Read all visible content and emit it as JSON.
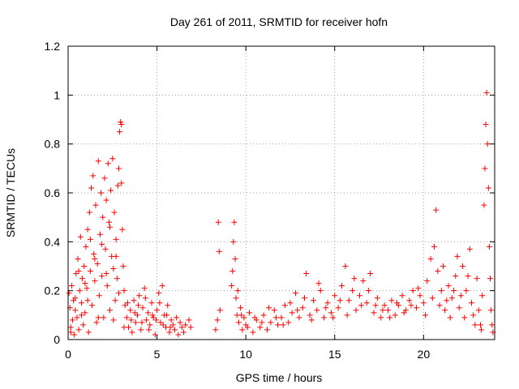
{
  "chart_data": {
    "type": "scatter",
    "title": "Day 261 of 2011, SRMTID for receiver hofn",
    "xlabel": "GPS time / hours",
    "ylabel": "SRMTID / TECUs",
    "xlim": [
      0,
      24
    ],
    "ylim": [
      0,
      1.2
    ],
    "xticks": [
      0,
      5,
      10,
      15,
      20
    ],
    "yticks": [
      0,
      0.2,
      0.4,
      0.6,
      0.8,
      1,
      1.2
    ],
    "grid": true,
    "marker": "+",
    "marker_color": "#ff0000",
    "series": [
      {
        "points": [
          [
            0.05,
            0.19
          ],
          [
            0.1,
            0.13
          ],
          [
            0.15,
            0.05
          ],
          [
            0.2,
            0.22
          ],
          [
            0.25,
            0.08
          ],
          [
            0.3,
            0.16
          ],
          [
            0.35,
            0.02
          ],
          [
            0.4,
            0.12
          ],
          [
            0.45,
            0.27
          ],
          [
            0.5,
            0.09
          ],
          [
            0.55,
            0.33
          ],
          [
            0.6,
            0.04
          ],
          [
            0.65,
            0.2
          ],
          [
            0.7,
            0.42
          ],
          [
            0.75,
            0.15
          ],
          [
            0.8,
            0.25
          ],
          [
            0.85,
            0.06
          ],
          [
            0.9,
            0.3
          ],
          [
            0.95,
            0.11
          ],
          [
            1.0,
            0.38
          ],
          [
            1.05,
            0.21
          ],
          [
            1.1,
            0.45
          ],
          [
            1.15,
            0.03
          ],
          [
            1.2,
            0.52
          ],
          [
            1.25,
            0.28
          ],
          [
            1.3,
            0.62
          ],
          [
            1.35,
            0.14
          ],
          [
            1.4,
            0.67
          ],
          [
            1.45,
            0.35
          ],
          [
            1.5,
            0.24
          ],
          [
            1.55,
            0.55
          ],
          [
            1.6,
            0.07
          ],
          [
            1.65,
            0.31
          ],
          [
            1.7,
            0.73
          ],
          [
            1.75,
            0.18
          ],
          [
            1.8,
            0.43
          ],
          [
            1.85,
            0.6
          ],
          [
            1.9,
            0.26
          ],
          [
            1.95,
            0.5
          ],
          [
            2.0,
            0.09
          ],
          [
            2.05,
            0.66
          ],
          [
            2.1,
            0.37
          ],
          [
            2.15,
            0.57
          ],
          [
            2.2,
            0.22
          ],
          [
            2.25,
            0.72
          ],
          [
            2.3,
            0.48
          ],
          [
            2.35,
            0.12
          ],
          [
            2.4,
            0.61
          ],
          [
            2.45,
            0.34
          ],
          [
            2.5,
            0.74
          ],
          [
            2.55,
            0.29
          ],
          [
            2.6,
            0.52
          ],
          [
            2.65,
            0.16
          ],
          [
            2.7,
            0.41
          ],
          [
            2.75,
            0.25
          ],
          [
            2.8,
            0.63
          ],
          [
            2.85,
            0.7
          ],
          [
            2.9,
            0.85
          ],
          [
            2.95,
            0.89
          ],
          [
            3.0,
            0.88
          ],
          [
            3.05,
            0.45
          ],
          [
            3.1,
            0.3
          ],
          [
            3.15,
            0.2
          ],
          [
            3.2,
            0.14
          ],
          [
            3.3,
            0.09
          ],
          [
            3.4,
            0.05
          ],
          [
            3.5,
            0.12
          ],
          [
            3.6,
            0.03
          ],
          [
            3.7,
            0.16
          ],
          [
            3.8,
            0.07
          ],
          [
            3.9,
            0.1
          ],
          [
            4.0,
            0.18
          ],
          [
            4.1,
            0.04
          ],
          [
            4.2,
            0.13
          ],
          [
            4.3,
            0.21
          ],
          [
            4.4,
            0.08
          ],
          [
            4.5,
            0.11
          ],
          [
            4.6,
            0.06
          ],
          [
            4.7,
            0.15
          ],
          [
            4.8,
            0.09
          ],
          [
            4.9,
            0.02
          ],
          [
            5.0,
            0.12
          ],
          [
            5.1,
            0.19
          ],
          [
            5.2,
            0.07
          ],
          [
            5.3,
            0.22
          ],
          [
            5.4,
            0.1
          ],
          [
            5.5,
            0.05
          ],
          [
            5.6,
            0.14
          ],
          [
            5.7,
            0.03
          ],
          [
            5.8,
            0.08
          ],
          [
            5.9,
            0.06
          ],
          [
            6.0,
            0.04
          ],
          [
            6.1,
            0.09
          ],
          [
            6.2,
            0.02
          ],
          [
            6.3,
            0.07
          ],
          [
            6.4,
            0.05
          ],
          [
            6.5,
            0.03
          ],
          [
            6.6,
            0.06
          ],
          [
            6.8,
            0.08
          ],
          [
            6.9,
            0.05
          ],
          [
            8.3,
            0.04
          ],
          [
            8.4,
            0.08
          ],
          [
            8.45,
            0.48
          ],
          [
            8.5,
            0.36
          ],
          [
            8.55,
            0.12
          ],
          [
            9.2,
            0.22
          ],
          [
            9.3,
            0.4
          ],
          [
            9.35,
            0.48
          ],
          [
            9.4,
            0.33
          ],
          [
            9.45,
            0.17
          ],
          [
            9.5,
            0.1
          ],
          [
            9.6,
            0.07
          ],
          [
            9.7,
            0.13
          ],
          [
            9.8,
            0.04
          ],
          [
            9.9,
            0.09
          ],
          [
            10.0,
            0.06
          ],
          [
            10.2,
            0.11
          ],
          [
            10.4,
            0.03
          ],
          [
            10.6,
            0.08
          ],
          [
            10.8,
            0.05
          ],
          [
            11.0,
            0.1
          ],
          [
            11.2,
            0.04
          ],
          [
            11.4,
            0.07
          ],
          [
            11.6,
            0.12
          ],
          [
            11.8,
            0.06
          ],
          [
            12.0,
            0.09
          ],
          [
            12.2,
            0.14
          ],
          [
            12.4,
            0.07
          ],
          [
            12.6,
            0.11
          ],
          [
            12.8,
            0.19
          ],
          [
            13.0,
            0.09
          ],
          [
            13.2,
            0.13
          ],
          [
            13.4,
            0.27
          ],
          [
            13.6,
            0.1
          ],
          [
            13.8,
            0.16
          ],
          [
            14.0,
            0.12
          ],
          [
            14.2,
            0.2
          ],
          [
            14.4,
            0.09
          ],
          [
            14.6,
            0.15
          ],
          [
            14.8,
            0.11
          ],
          [
            15.0,
            0.18
          ],
          [
            15.2,
            0.13
          ],
          [
            15.4,
            0.22
          ],
          [
            15.6,
            0.3
          ],
          [
            15.8,
            0.16
          ],
          [
            16.0,
            0.2
          ],
          [
            16.2,
            0.12
          ],
          [
            16.4,
            0.18
          ],
          [
            16.6,
            0.24
          ],
          [
            16.8,
            0.15
          ],
          [
            17.0,
            0.27
          ],
          [
            17.2,
            0.11
          ],
          [
            17.4,
            0.17
          ],
          [
            17.6,
            0.09
          ],
          [
            17.8,
            0.14
          ],
          [
            18.0,
            0.12
          ],
          [
            18.2,
            0.16
          ],
          [
            18.4,
            0.1
          ],
          [
            18.6,
            0.14
          ],
          [
            18.8,
            0.18
          ],
          [
            19.0,
            0.12
          ],
          [
            19.2,
            0.16
          ],
          [
            19.4,
            0.2
          ],
          [
            19.6,
            0.13
          ],
          [
            19.8,
            0.18
          ],
          [
            20.0,
            0.15
          ],
          [
            20.2,
            0.24
          ],
          [
            20.4,
            0.33
          ],
          [
            20.6,
            0.38
          ],
          [
            20.7,
            0.53
          ],
          [
            20.8,
            0.28
          ],
          [
            21.0,
            0.2
          ],
          [
            21.2,
            0.12
          ],
          [
            21.4,
            0.22
          ],
          [
            21.6,
            0.17
          ],
          [
            21.8,
            0.26
          ],
          [
            22.0,
            0.13
          ],
          [
            22.2,
            0.3
          ],
          [
            22.4,
            0.2
          ],
          [
            22.6,
            0.37
          ],
          [
            22.8,
            0.1
          ],
          [
            23.0,
            0.25
          ],
          [
            23.2,
            0.06
          ],
          [
            23.3,
            0.18
          ],
          [
            23.4,
            0.55
          ],
          [
            23.45,
            0.7
          ],
          [
            23.5,
            0.88
          ],
          [
            23.55,
            1.01
          ],
          [
            23.6,
            0.8
          ],
          [
            23.65,
            0.62
          ],
          [
            23.7,
            0.38
          ],
          [
            23.75,
            0.25
          ],
          [
            23.8,
            0.12
          ],
          [
            23.85,
            0.06
          ],
          [
            23.9,
            0.03
          ],
          [
            0.15,
            0.03
          ],
          [
            0.4,
            0.17
          ],
          [
            0.6,
            0.28
          ],
          [
            0.75,
            0.1
          ],
          [
            0.95,
            0.23
          ],
          [
            1.1,
            0.16
          ],
          [
            1.25,
            0.41
          ],
          [
            1.5,
            0.33
          ],
          [
            1.7,
            0.09
          ],
          [
            1.9,
            0.39
          ],
          [
            2.15,
            0.27
          ],
          [
            2.35,
            0.46
          ],
          [
            2.55,
            0.08
          ],
          [
            2.7,
            0.34
          ],
          [
            2.85,
            0.19
          ],
          [
            3.0,
            0.64
          ],
          [
            3.15,
            0.05
          ],
          [
            3.35,
            0.15
          ],
          [
            3.55,
            0.08
          ],
          [
            3.75,
            0.11
          ],
          [
            3.95,
            0.14
          ],
          [
            4.15,
            0.07
          ],
          [
            4.35,
            0.17
          ],
          [
            4.55,
            0.04
          ],
          [
            4.75,
            0.1
          ],
          [
            4.95,
            0.08
          ],
          [
            5.15,
            0.15
          ],
          [
            5.35,
            0.06
          ],
          [
            5.55,
            0.1
          ],
          [
            5.75,
            0.05
          ],
          [
            9.25,
            0.28
          ],
          [
            9.55,
            0.2
          ],
          [
            9.75,
            0.1
          ],
          [
            10.1,
            0.05
          ],
          [
            10.5,
            0.09
          ],
          [
            10.9,
            0.07
          ],
          [
            11.3,
            0.13
          ],
          [
            11.7,
            0.09
          ],
          [
            12.1,
            0.06
          ],
          [
            12.5,
            0.15
          ],
          [
            12.9,
            0.12
          ],
          [
            13.3,
            0.17
          ],
          [
            13.7,
            0.08
          ],
          [
            14.1,
            0.23
          ],
          [
            14.5,
            0.13
          ],
          [
            14.9,
            0.09
          ],
          [
            15.3,
            0.16
          ],
          [
            15.7,
            0.1
          ],
          [
            16.1,
            0.25
          ],
          [
            16.5,
            0.14
          ],
          [
            16.9,
            0.2
          ],
          [
            17.3,
            0.14
          ],
          [
            17.7,
            0.12
          ],
          [
            18.1,
            0.09
          ],
          [
            18.5,
            0.15
          ],
          [
            18.9,
            0.11
          ],
          [
            19.3,
            0.14
          ],
          [
            19.7,
            0.21
          ],
          [
            20.1,
            0.1
          ],
          [
            20.5,
            0.17
          ],
          [
            20.9,
            0.14
          ],
          [
            21.1,
            0.3
          ],
          [
            21.3,
            0.16
          ],
          [
            21.5,
            0.09
          ],
          [
            21.7,
            0.2
          ],
          [
            21.9,
            0.34
          ],
          [
            22.1,
            0.18
          ],
          [
            22.3,
            0.09
          ],
          [
            22.5,
            0.26
          ],
          [
            22.7,
            0.15
          ],
          [
            22.9,
            0.06
          ],
          [
            23.1,
            0.12
          ],
          [
            23.25,
            0.04
          ]
        ]
      }
    ]
  }
}
